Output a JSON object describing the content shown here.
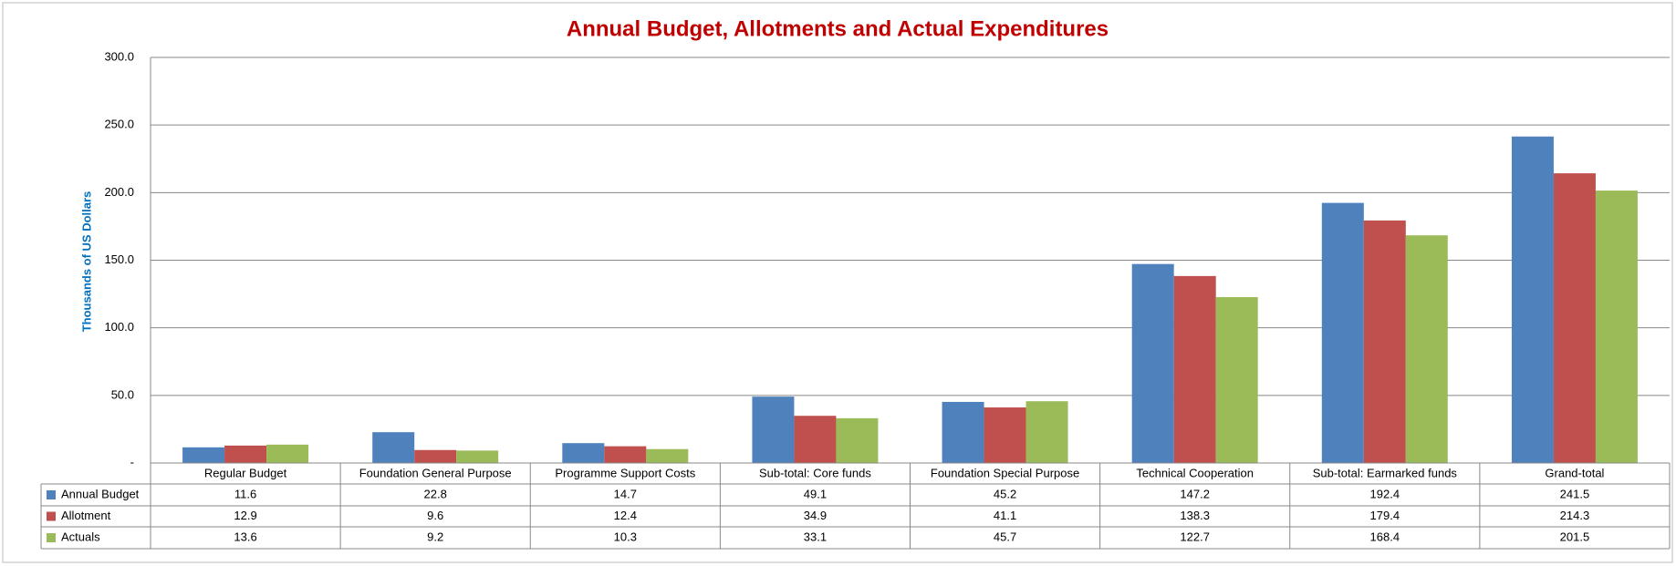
{
  "chart_data": {
    "type": "bar",
    "title": "Annual Budget, Allotments and Actual Expenditures",
    "y_label": "Thousands of US Dollars",
    "categories": [
      "Regular Budget",
      "Foundation General Purpose",
      "Programme Support Costs",
      "Sub-total: Core funds",
      "Foundation Special Purpose",
      "Technical Cooperation",
      "Sub-total: Earmarked funds",
      "Grand-total"
    ],
    "series": [
      {
        "name": "Annual Budget",
        "color": "#4f81bd",
        "values": [
          11.6,
          22.8,
          14.7,
          49.1,
          45.2,
          147.2,
          192.4,
          241.5
        ]
      },
      {
        "name": "Allotment",
        "color": "#c0504d",
        "values": [
          12.9,
          9.6,
          12.4,
          34.9,
          41.1,
          138.3,
          179.4,
          214.3
        ]
      },
      {
        "name": "Actuals",
        "color": "#9bbb59",
        "values": [
          13.6,
          9.2,
          10.3,
          33.1,
          45.7,
          122.7,
          168.4,
          201.5
        ]
      }
    ],
    "ylim": [
      0,
      300
    ],
    "yticks": [
      {
        "value": 0,
        "label": "-"
      },
      {
        "value": 50,
        "label": "50.0"
      },
      {
        "value": 100,
        "label": "100.0"
      },
      {
        "value": 150,
        "label": "150.0"
      },
      {
        "value": 200,
        "label": "200.0"
      },
      {
        "value": 250,
        "label": "250.0"
      },
      {
        "value": 300,
        "label": "300.0"
      }
    ],
    "grid": true
  }
}
